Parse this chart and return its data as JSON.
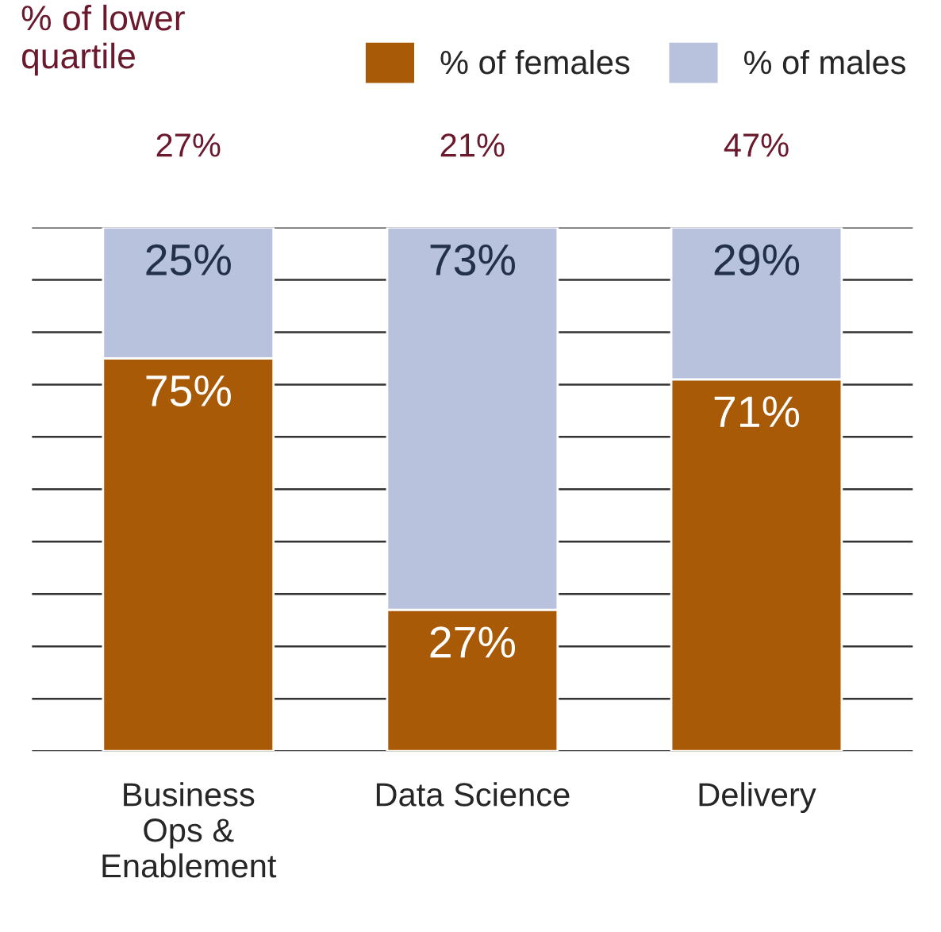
{
  "chart_data": {
    "type": "bar",
    "stacked": true,
    "title": "% of lower quartile",
    "categories": [
      "Business\nOps &\nEnablement",
      "Data Science",
      "Delivery"
    ],
    "series": [
      {
        "name": "% of females",
        "color": "#a85a06",
        "values": [
          75,
          27,
          71
        ],
        "value_labels": [
          "75%",
          "27%",
          "71%"
        ]
      },
      {
        "name": "% of males",
        "color": "#b8c2dc",
        "values": [
          25,
          73,
          29
        ],
        "value_labels": [
          "25%",
          "73%",
          "29%"
        ]
      }
    ],
    "annotations": [
      "27%",
      "21%",
      "47%"
    ],
    "ylim": [
      0,
      100
    ],
    "yticks": [
      {
        "value": 0,
        "label": null
      },
      {
        "value": 10,
        "label": null
      },
      {
        "value": 20,
        "label": null
      },
      {
        "value": 30,
        "label": null
      },
      {
        "value": 40,
        "label": null
      },
      {
        "value": 50,
        "label": null
      },
      {
        "value": 60,
        "label": null
      },
      {
        "value": 70,
        "label": null
      },
      {
        "value": 80,
        "label": null
      },
      {
        "value": 90,
        "label": null
      },
      {
        "value": 100,
        "label": null
      }
    ],
    "tick_labels": "x",
    "grid": "y",
    "legend": "top right"
  }
}
